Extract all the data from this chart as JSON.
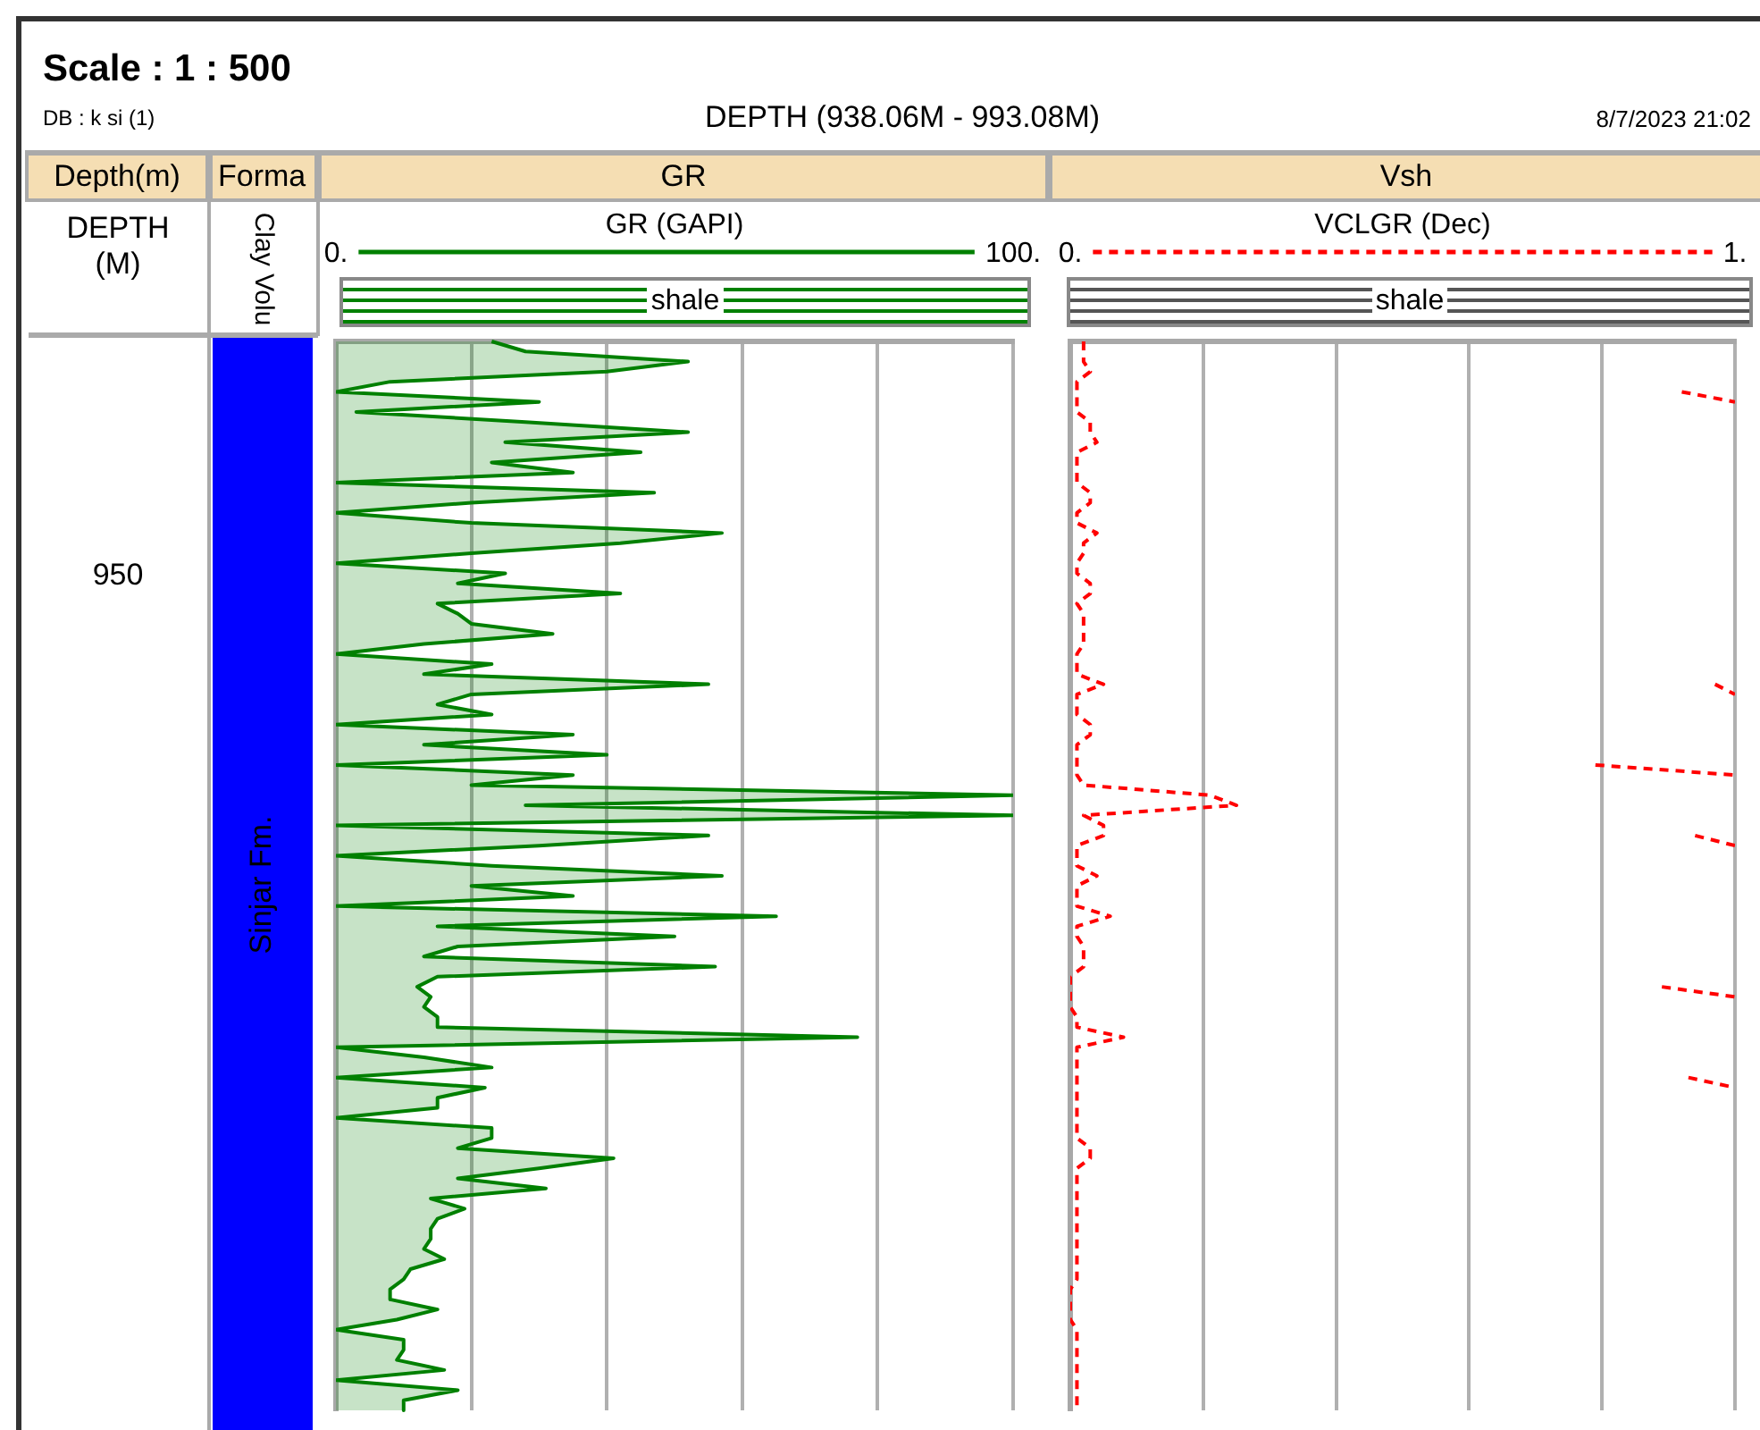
{
  "chart_data": [
    {
      "type": "area",
      "orientation": "horizontal",
      "title": "Scale : 1 : 500",
      "subtitle": "DEPTH (938.06M - 993.08M)",
      "ylabel": "DEPTH (M)",
      "annotations": [
        "DB : k si (1)",
        "8/7/2023 21:02",
        "Depth(m)",
        "Forma",
        "Clay Volu",
        "Sinjar Fm.",
        "GR",
        "shale",
        "950"
      ],
      "categories": [
        null,
        null,
        null,
        null,
        null,
        null,
        null,
        null,
        null,
        null,
        null,
        null,
        null,
        null,
        null,
        null,
        null,
        null,
        null,
        null,
        null,
        null,
        null,
        null,
        null,
        null,
        null,
        null,
        null,
        null,
        null,
        null,
        null,
        null,
        null,
        null,
        null,
        null,
        null,
        null,
        null,
        null,
        null,
        null,
        null,
        null,
        null,
        null,
        null,
        null,
        null,
        null,
        null,
        null,
        null,
        null,
        null,
        null,
        null,
        null,
        null,
        null,
        null,
        null,
        null,
        null,
        null,
        null,
        null,
        null,
        null,
        null,
        null,
        null,
        null,
        null,
        null,
        null,
        null,
        null,
        null,
        null,
        null,
        null,
        null,
        null,
        null,
        null,
        null,
        null,
        null,
        null,
        null,
        null,
        null,
        null,
        null,
        null,
        null,
        null,
        null,
        null,
        null,
        null,
        null,
        null,
        null
      ],
      "xlim": [
        0,
        100
      ],
      "xticks": [
        {
          "value": 0,
          "label": "0."
        },
        {
          "value": 20,
          "label": null
        },
        {
          "value": 40,
          "label": null
        },
        {
          "value": 60,
          "label": null
        },
        {
          "value": 80,
          "label": null
        },
        {
          "value": 100,
          "label": "100."
        }
      ],
      "tick_labels": "x",
      "grid": "x",
      "legend": "top",
      "marker": "none",
      "line_style": "solid",
      "series": [
        {
          "name": "GR (GAPI)",
          "color": "#008000",
          "values": [
            23,
            28,
            52,
            40,
            8,
            0,
            30,
            3,
            28,
            52,
            25,
            45,
            23,
            35,
            0,
            47,
            20,
            0,
            20,
            57,
            42,
            20,
            0,
            25,
            18,
            42,
            15,
            18,
            20,
            32,
            13,
            0,
            23,
            13,
            55,
            20,
            15,
            23,
            0,
            35,
            13,
            40,
            0,
            35,
            20,
            100,
            28,
            100,
            0,
            55,
            30,
            0,
            23,
            57,
            20,
            35,
            0,
            65,
            15,
            50,
            18,
            13,
            56,
            15,
            12,
            14,
            13,
            15,
            15,
            77,
            0,
            13,
            23,
            0,
            22,
            15,
            15,
            0,
            23,
            23,
            18,
            41,
            30,
            18,
            31,
            14,
            19,
            15,
            14,
            14,
            13,
            16,
            11,
            10,
            8,
            8,
            15,
            9,
            0,
            10,
            10,
            9,
            16,
            0,
            18,
            10,
            10
          ]
        }
      ]
    },
    {
      "type": "line",
      "orientation": "horizontal",
      "title": "Vsh",
      "annotations": [
        "shale"
      ],
      "categories": [
        null,
        null,
        null,
        null,
        null,
        null,
        null,
        null,
        null,
        null,
        null,
        null,
        null,
        null,
        null,
        null,
        null,
        null,
        null,
        null,
        null,
        null,
        null,
        null,
        null,
        null,
        null,
        null,
        null,
        null,
        null,
        null,
        null,
        null,
        null,
        null,
        null,
        null,
        null,
        null,
        null,
        null,
        null,
        null,
        null,
        null,
        null,
        null,
        null,
        null,
        null,
        null,
        null,
        null,
        null,
        null,
        null,
        null,
        null,
        null,
        null,
        null,
        null,
        null,
        null,
        null,
        null,
        null,
        null,
        null,
        null,
        null,
        null,
        null,
        null,
        null,
        null,
        null,
        null,
        null,
        null,
        null,
        null,
        null,
        null,
        null,
        null,
        null,
        null,
        null,
        null,
        null,
        null,
        null,
        null,
        null,
        null,
        null,
        null,
        null,
        null,
        null,
        null,
        null,
        null,
        null,
        null
      ],
      "xlim": [
        0,
        1
      ],
      "xticks": [
        {
          "value": 0,
          "label": "0."
        },
        {
          "value": 0.2,
          "label": null
        },
        {
          "value": 0.4,
          "label": null
        },
        {
          "value": 0.6,
          "label": null
        },
        {
          "value": 0.8,
          "label": null
        },
        {
          "value": 1,
          "label": "1."
        }
      ],
      "tick_labels": "x",
      "grid": "x",
      "legend": "top",
      "marker": "none",
      "line_style": "dashed",
      "series": [
        {
          "name": "VCLGR (Dec)",
          "color": "#ff0000",
          "values": [
            0.02,
            0.02,
            0.02,
            0.03,
            0.01,
            0.01,
            0.01,
            0.01,
            0.03,
            0.03,
            0.04,
            0.01,
            0.01,
            0.01,
            0.01,
            0.03,
            0.03,
            0.01,
            0.01,
            0.04,
            0.02,
            0.02,
            0.01,
            0.01,
            0.03,
            0.03,
            0.01,
            0.02,
            0.02,
            0.02,
            0.02,
            0.01,
            0.01,
            0.01,
            0.05,
            0.01,
            0.01,
            0.01,
            0.03,
            0.03,
            0.01,
            0.01,
            0.01,
            0.01,
            0.02,
            0.21,
            0.25,
            0.02,
            0.05,
            0.05,
            0.01,
            0.01,
            0.01,
            0.04,
            0.01,
            0.01,
            0.01,
            0.06,
            0.01,
            0.01,
            0.02,
            0.02,
            0.02,
            0,
            0,
            0,
            0,
            0.01,
            0.01,
            0.08,
            0.01,
            0.01,
            0.01,
            0.01,
            0.01,
            0.01,
            0.01,
            0.01,
            0.01,
            0.01,
            0.03,
            0.03,
            0.01,
            0.01,
            0.01,
            0.01,
            0.01,
            0.01,
            0.01,
            0.01,
            0.01,
            0.01,
            0.01,
            0.01,
            0,
            0,
            0,
            0,
            0.01,
            0.01,
            0.01,
            0.01,
            0.01,
            0.01,
            0.01,
            0.01,
            0.01
          ]
        },
        {
          "color": "#ff0000",
          "values": [
            null,
            null,
            null,
            null,
            null,
            0.92,
            1,
            null,
            null,
            null,
            null,
            null,
            null,
            null,
            null,
            null,
            null,
            null,
            null,
            null,
            null,
            null,
            null,
            null,
            null,
            null,
            null,
            null,
            null,
            null,
            null,
            null,
            null,
            null,
            0.97,
            1,
            null,
            null,
            null,
            null,
            null,
            null,
            0.79,
            1,
            null,
            null,
            null,
            null,
            null,
            0.94,
            1,
            null,
            null,
            null,
            null,
            null,
            null,
            null,
            null,
            null,
            null,
            null,
            null,
            null,
            0.89,
            1,
            null,
            null,
            null,
            null,
            null,
            null,
            null,
            0.93,
            1,
            null,
            null,
            null,
            null,
            null,
            null,
            null,
            null,
            null,
            null,
            null,
            null,
            null,
            null,
            null,
            null,
            null,
            null,
            null,
            null,
            null,
            null,
            null,
            null,
            null,
            null,
            null,
            null,
            null,
            null,
            null,
            null
          ]
        }
      ]
    }
  ]
}
